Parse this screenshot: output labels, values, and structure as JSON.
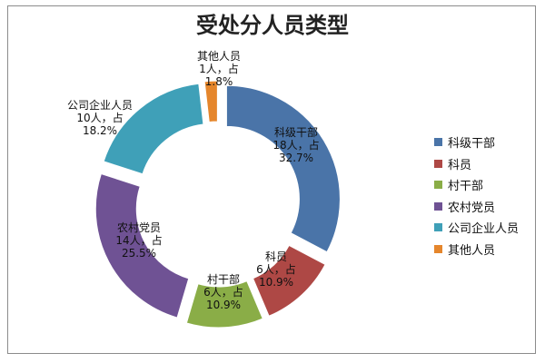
{
  "chart_data": {
    "type": "pie",
    "variant": "donut-exploded",
    "title": "受处分人员类型",
    "legend_position": "right",
    "slices": [
      {
        "name": "科级干部",
        "value": 18,
        "percent": 32.7,
        "color": "#4a74a8",
        "label": [
          "科级干部",
          "18人，占",
          "32.7%"
        ]
      },
      {
        "name": "科员",
        "value": 6,
        "percent": 10.9,
        "color": "#ae4845",
        "label": [
          "科员",
          "6人，占",
          "10.9%"
        ]
      },
      {
        "name": "村干部",
        "value": 6,
        "percent": 10.9,
        "color": "#8aad47",
        "label": [
          "村干部",
          "6人，占",
          "10.9%"
        ]
      },
      {
        "name": "农村党员",
        "value": 14,
        "percent": 25.5,
        "color": "#6f5294",
        "label": [
          "农村党员",
          "14人，占",
          "25.5%"
        ]
      },
      {
        "name": "公司企业人员",
        "value": 10,
        "percent": 18.2,
        "color": "#3fa0b8",
        "label": [
          "公司企业人员",
          "10人，占",
          "18.2%"
        ]
      },
      {
        "name": "其他人员",
        "value": 1,
        "percent": 1.8,
        "color": "#e5862c",
        "label": [
          "其他人员",
          "1人，占",
          "1.8%"
        ]
      }
    ]
  }
}
